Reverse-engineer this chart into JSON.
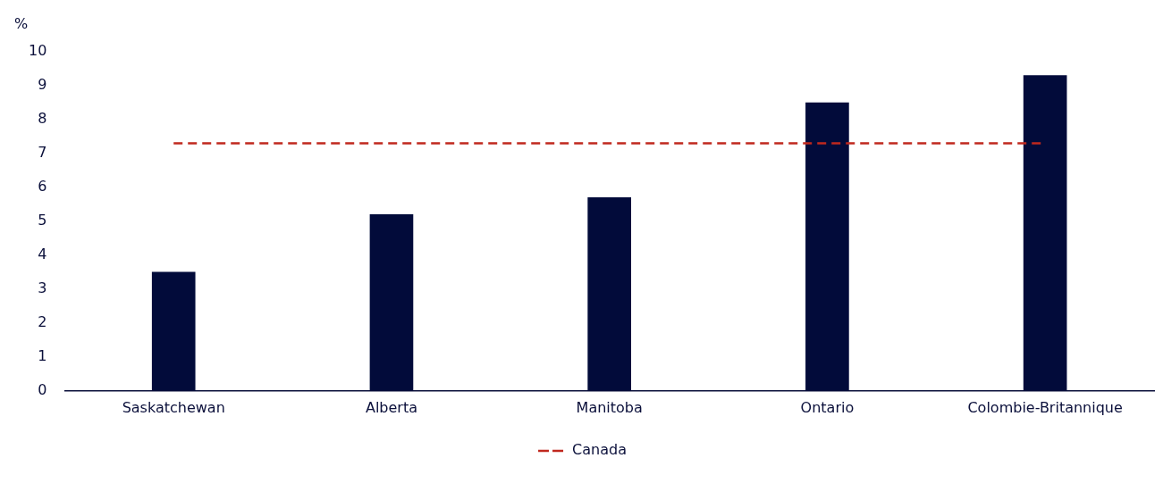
{
  "chart_data": {
    "type": "bar",
    "ylabel": "%",
    "categories": [
      "Saskatchewan",
      "Alberta",
      "Manitoba",
      "Ontario",
      "Colombie-Britannique"
    ],
    "series": [
      {
        "color": "#020b3a",
        "values": [
          3.5,
          5.2,
          5.7,
          8.5,
          9.3
        ]
      },
      {
        "type": "line",
        "name": "Canada",
        "color": "#c0281e",
        "values": [
          7.3,
          7.3,
          7.3,
          7.3,
          7.3
        ],
        "line_style": "dashed",
        "marker": "none"
      }
    ],
    "ylim": [
      0,
      10
    ],
    "yticks": [
      0,
      1,
      2,
      3,
      4,
      5,
      6,
      7,
      8,
      9,
      10
    ],
    "grid": false,
    "legend": "bottom"
  }
}
